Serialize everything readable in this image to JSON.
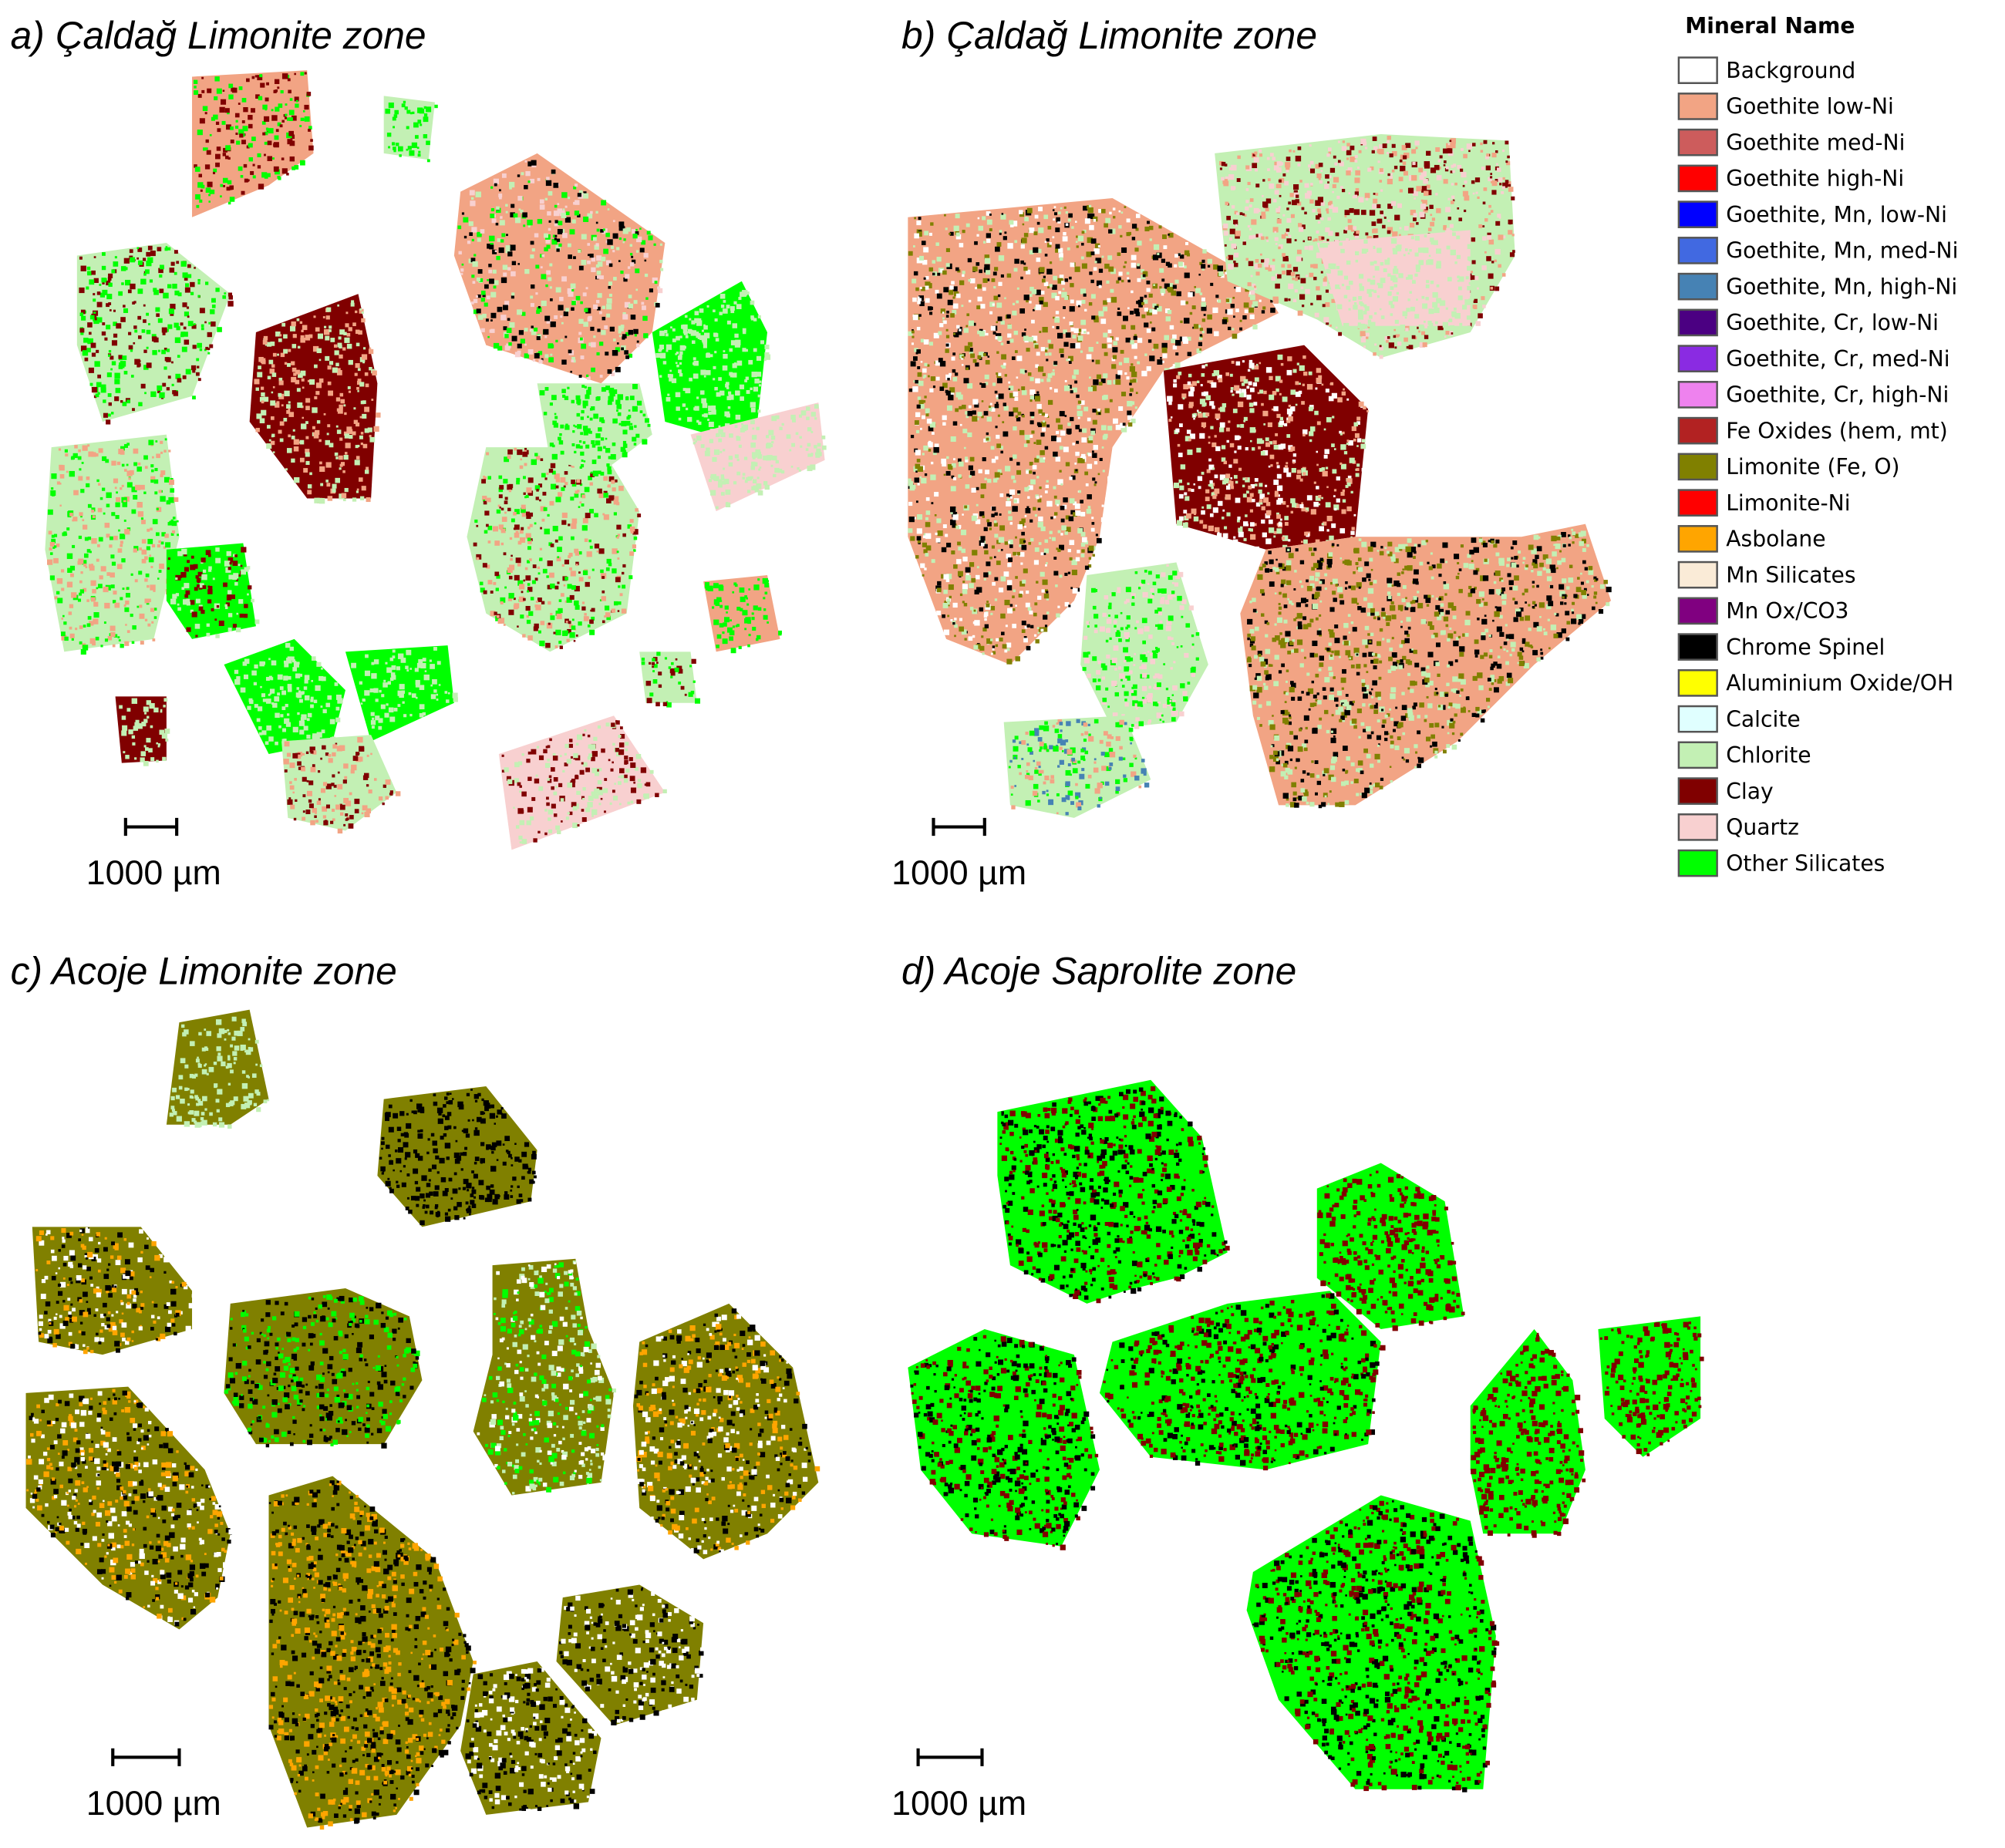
{
  "panels": [
    {
      "title": "a) Çaldağ Limonite zone",
      "scale_label": "1000 µm"
    },
    {
      "title": "b) Çaldağ Limonite zone",
      "scale_label": "1000 µm"
    },
    {
      "title": "c) Acoje Limonite zone",
      "scale_label": "1000 µm"
    },
    {
      "title": "d) Acoje Saprolite zone",
      "scale_label": "1000 µm"
    }
  ],
  "legend": {
    "title": "Mineral Name",
    "items": [
      {
        "name": "Background",
        "color": "#ffffff"
      },
      {
        "name": "Goethite low-Ni",
        "color": "#f2a484"
      },
      {
        "name": "Goethite med-Ni",
        "color": "#cd5c5c"
      },
      {
        "name": "Goethite high-Ni",
        "color": "#ff0000"
      },
      {
        "name": "Goethite, Mn, low-Ni",
        "color": "#0000ff"
      },
      {
        "name": "Goethite, Mn, med-Ni",
        "color": "#4169e1"
      },
      {
        "name": "Goethite, Mn, high-Ni",
        "color": "#4682b4"
      },
      {
        "name": "Goethite, Cr, low-Ni",
        "color": "#4b0082"
      },
      {
        "name": "Goethite, Cr, med-Ni",
        "color": "#8a2be2"
      },
      {
        "name": "Goethite, Cr, high-Ni",
        "color": "#ee82ee"
      },
      {
        "name": "Fe Oxides (hem, mt)",
        "color": "#b22222"
      },
      {
        "name": "Limonite (Fe, O)",
        "color": "#808000"
      },
      {
        "name": "Limonite-Ni",
        "color": "#ff0000"
      },
      {
        "name": "Asbolane",
        "color": "#ffa500"
      },
      {
        "name": "Mn Silicates",
        "color": "#faebd7"
      },
      {
        "name": "Mn Ox/CO3",
        "color": "#800080"
      },
      {
        "name": "Chrome Spinel",
        "color": "#000000"
      },
      {
        "name": "Aluminium Oxide/OH",
        "color": "#ffff00"
      },
      {
        "name": "Calcite",
        "color": "#e0ffff"
      },
      {
        "name": "Chlorite",
        "color": "#c3f0b4"
      },
      {
        "name": "Clay",
        "color": "#800000"
      },
      {
        "name": "Quartz",
        "color": "#f8d0d0"
      },
      {
        "name": "Other Silicates",
        "color": "#00ff00"
      }
    ]
  }
}
